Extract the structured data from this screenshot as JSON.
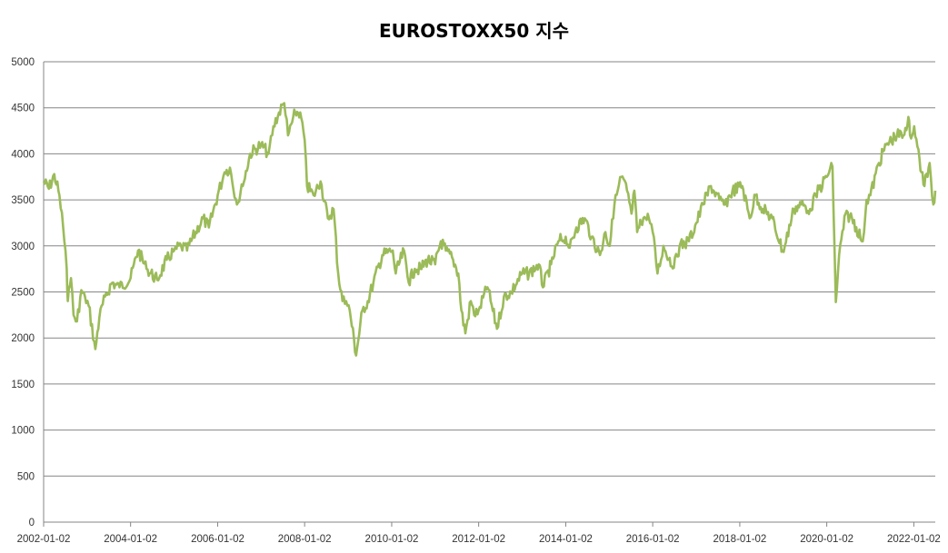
{
  "chart_data": {
    "type": "line",
    "title": "EUROSTOXX50 지수",
    "xlabel": "",
    "ylabel": "",
    "ylim": [
      0,
      5000
    ],
    "yticks": [
      0,
      500,
      1000,
      1500,
      2000,
      2500,
      3000,
      3500,
      4000,
      4500,
      5000
    ],
    "xticks": [
      "2002-01-02",
      "2004-01-02",
      "2006-01-02",
      "2008-01-02",
      "2010-01-02",
      "2012-01-02",
      "2014-01-02",
      "2016-01-02",
      "2018-01-02",
      "2020-01-02",
      "2022-01-02"
    ],
    "xlim": [
      "2002-01-02",
      "2022-07-01"
    ],
    "grid": "horizontal",
    "legend": "none",
    "color": "#9BBB59",
    "series": [
      {
        "x": [
          "2002-01-02",
          "2002-02-15",
          "2002-04-01",
          "2002-05-15",
          "2002-06-15",
          "2002-07-15",
          "2002-07-24",
          "2002-08-20",
          "2002-09-10",
          "2002-10-09",
          "2002-11-15",
          "2002-12-15",
          "2003-01-15",
          "2003-03-12",
          "2003-04-15",
          "2003-06-01",
          "2003-08-01",
          "2003-10-01",
          "2004-01-02",
          "2004-03-05",
          "2004-05-15",
          "2004-08-12",
          "2004-11-01",
          "2005-01-02",
          "2005-03-01",
          "2005-04-20",
          "2005-07-01",
          "2005-09-01",
          "2005-10-20",
          "2006-01-02",
          "2006-03-01",
          "2006-04-15",
          "2006-06-13",
          "2006-08-01",
          "2006-10-01",
          "2007-01-02",
          "2007-03-05",
          "2007-04-15",
          "2007-06-01",
          "2007-07-15",
          "2007-08-16",
          "2007-10-15",
          "2007-11-26",
          "2008-01-02",
          "2008-01-22",
          "2008-03-17",
          "2008-05-15",
          "2008-07-15",
          "2008-09-01",
          "2008-10-10",
          "2008-11-15",
          "2008-12-15",
          "2009-01-15",
          "2009-03-09",
          "2009-05-01",
          "2009-06-15",
          "2009-08-01",
          "2009-10-15",
          "2010-01-11",
          "2010-02-05",
          "2010-04-15",
          "2010-05-25",
          "2010-07-15",
          "2010-09-01",
          "2010-11-01",
          "2011-01-02",
          "2011-02-18",
          "2011-04-01",
          "2011-06-01",
          "2011-07-15",
          "2011-08-10",
          "2011-09-12",
          "2011-10-28",
          "2011-11-25",
          "2012-01-02",
          "2012-03-16",
          "2012-06-04",
          "2012-08-01",
          "2012-10-01",
          "2013-01-02",
          "2013-03-01",
          "2013-05-21",
          "2013-06-24",
          "2013-09-01",
          "2013-11-01",
          "2014-01-02",
          "2014-02-04",
          "2014-04-01",
          "2014-06-10",
          "2014-08-08",
          "2014-10-16",
          "2014-12-01",
          "2015-01-06",
          "2015-02-15",
          "2015-04-13",
          "2015-06-01",
          "2015-07-08",
          "2015-08-01",
          "2015-08-24",
          "2015-10-15",
          "2015-12-01",
          "2016-01-02",
          "2016-02-11",
          "2016-04-01",
          "2016-06-27",
          "2016-08-15",
          "2016-11-01",
          "2017-01-02",
          "2017-03-01",
          "2017-05-05",
          "2017-07-15",
          "2017-09-01",
          "2017-11-01",
          "2018-01-23",
          "2018-03-26",
          "2018-05-15",
          "2018-07-15",
          "2018-10-01",
          "2018-12-27",
          "2019-01-15",
          "2019-04-01",
          "2019-06-01",
          "2019-08-15",
          "2019-10-01",
          "2020-01-02",
          "2020-02-19",
          "2020-03-18",
          "2020-04-15",
          "2020-06-08",
          "2020-08-01",
          "2020-10-30",
          "2020-12-01",
          "2021-01-02",
          "2021-03-15",
          "2021-05-15",
          "2021-08-13",
          "2021-10-06",
          "2021-11-17",
          "2021-12-01",
          "2022-01-05",
          "2022-02-01",
          "2022-03-07",
          "2022-04-01",
          "2022-05-15",
          "2022-06-15",
          "2022-07-01"
        ],
        "y": [
          3700,
          3620,
          3780,
          3550,
          3200,
          2750,
          2400,
          2650,
          2250,
          2180,
          2520,
          2450,
          2350,
          1880,
          2220,
          2450,
          2600,
          2550,
          2650,
          2950,
          2750,
          2630,
          2850,
          2950,
          3000,
          2950,
          3150,
          3300,
          3200,
          3550,
          3800,
          3850,
          3450,
          3650,
          4000,
          4100,
          4000,
          4300,
          4450,
          4550,
          4200,
          4450,
          4450,
          4150,
          3650,
          3550,
          3700,
          3300,
          3400,
          2700,
          2400,
          2400,
          2300,
          1810,
          2300,
          2400,
          2600,
          2900,
          2950,
          2700,
          2950,
          2600,
          2750,
          2750,
          2850,
          2800,
          3050,
          2950,
          2850,
          2700,
          2300,
          2050,
          2400,
          2250,
          2300,
          2550,
          2100,
          2450,
          2500,
          2700,
          2700,
          2800,
          2550,
          2800,
          3050,
          3100,
          2980,
          3200,
          3300,
          3100,
          2900,
          3150,
          3000,
          3450,
          3750,
          3600,
          3350,
          3600,
          3150,
          3300,
          3300,
          3150,
          2700,
          3000,
          2760,
          3000,
          3050,
          3250,
          3450,
          3650,
          3500,
          3450,
          3600,
          3650,
          3300,
          3550,
          3400,
          3300,
          2950,
          3000,
          3400,
          3450,
          3400,
          3550,
          3750,
          3860,
          2390,
          2900,
          3350,
          3300,
          3050,
          3500,
          3550,
          3900,
          4100,
          4200,
          4200,
          4400,
          4200,
          4300,
          4080,
          3800,
          3650,
          3900,
          3450,
          3600
        ]
      }
    ]
  }
}
